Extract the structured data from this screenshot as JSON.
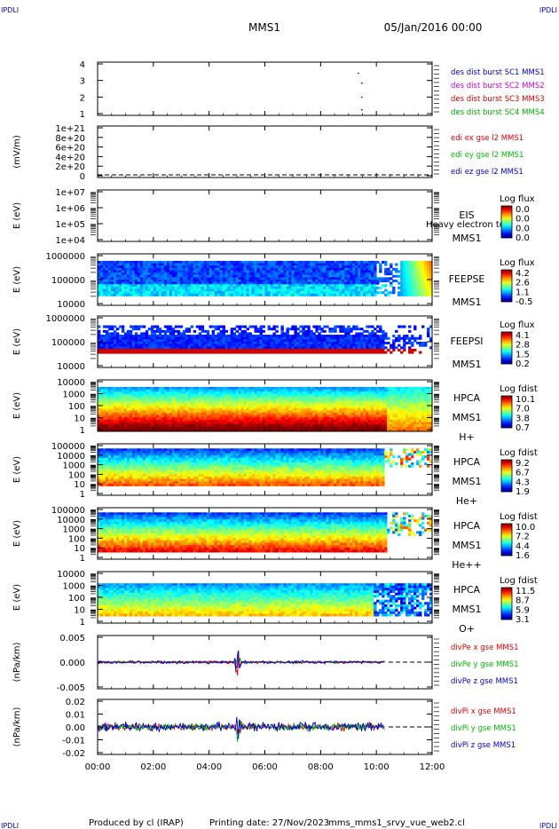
{
  "header": {
    "corner_left": "IPDLI",
    "corner_right": "IPDLI",
    "mission": "MMS1",
    "date_time": "05/Jan/2016 00:00"
  },
  "footer": {
    "produced_by": "Produced by cl (IRAP)",
    "printing_date": "Printing date: 27/Nov/2023",
    "script_name": "mms_mms1_srvy_vue_web2.cl",
    "corner_left": "IPDLI",
    "corner_right": "IPDLI"
  },
  "colors": {
    "mms1": "#0000cc",
    "mms2": "#cc00cc",
    "mms3": "#cc0000",
    "mms4": "#00aa00",
    "x": "#dd0000",
    "y": "#00bb00",
    "z": "#0000cc"
  },
  "chart_data": [
    {
      "type": "line",
      "id": "panel1",
      "ylabel": "",
      "yticks": [
        "1",
        "2",
        "3",
        "4"
      ],
      "ylim": [
        0.6,
        4.4
      ],
      "legend": [
        {
          "label": "des dist burst SC1 MMS1",
          "color": "#0000cc"
        },
        {
          "label": "des dist burst SC2 MMS2",
          "color": "#cc00cc"
        },
        {
          "label": "des dist burst SC3 MMS3",
          "color": "#cc0000"
        },
        {
          "label": "des dist burst SC4 MMS4",
          "color": "#00aa00"
        }
      ]
    },
    {
      "type": "line",
      "id": "panel2",
      "ylabel": "(mV/m)",
      "yticks": [
        "0",
        "2e+20",
        "4e+20",
        "6e+20",
        "8e+20",
        "1e+21"
      ],
      "ylim": [
        0,
        1e+21
      ],
      "legend": [
        {
          "label": "edi ex gse l2 MMS1",
          "color": "#dd0000"
        },
        {
          "label": "edi ey gse l2 MMS1",
          "color": "#00bb00"
        },
        {
          "label": "edi ez gse l2 MMS1",
          "color": "#0000cc"
        }
      ]
    },
    {
      "type": "heatmap",
      "id": "panel3",
      "ylabel": "E (eV)",
      "yticks": [
        "1e+04",
        "1e+05",
        "1e+06",
        "1e+07"
      ],
      "label_lines": [
        "EIS",
        "MMS1"
      ],
      "overlay_text": "Heavy electron to",
      "colorbar": {
        "title": "Log flux",
        "values": [
          "0.0",
          "0.0",
          "0.0",
          "0.0"
        ]
      }
    },
    {
      "type": "heatmap",
      "id": "panel4",
      "ylabel": "E (eV)",
      "yticks": [
        "10000",
        "100000",
        "1000000"
      ],
      "label_lines": [
        "FEEPSE",
        "MMS1"
      ],
      "colorbar": {
        "title": "Log flux",
        "values": [
          "4.2",
          "2.6",
          "1.1",
          "-0.5"
        ]
      }
    },
    {
      "type": "heatmap",
      "id": "panel5",
      "ylabel": "E (eV)",
      "yticks": [
        "10000",
        "100000",
        "1000000"
      ],
      "label_lines": [
        "FEEPSI",
        "MMS1"
      ],
      "colorbar": {
        "title": "Log flux",
        "values": [
          "4.1",
          "2.8",
          "1.5",
          "0.2"
        ]
      }
    },
    {
      "type": "heatmap",
      "id": "panel6",
      "ylabel": "E (eV)",
      "yticks": [
        "1",
        "10",
        "100",
        "1000",
        "10000"
      ],
      "label_lines": [
        "HPCA",
        "MMS1",
        "H+"
      ],
      "colorbar": {
        "title": "Log fdist",
        "values": [
          "10.1",
          "7.0",
          "3.8",
          "0.7"
        ]
      }
    },
    {
      "type": "heatmap",
      "id": "panel7",
      "ylabel": "E (eV)",
      "yticks": [
        "1",
        "10",
        "100",
        "1000",
        "10000",
        "100000"
      ],
      "label_lines": [
        "HPCA",
        "MMS1",
        "He+"
      ],
      "colorbar": {
        "title": "Log fdist",
        "values": [
          "9.2",
          "6.7",
          "4.3",
          "1.9"
        ]
      }
    },
    {
      "type": "heatmap",
      "id": "panel8",
      "ylabel": "E (eV)",
      "yticks": [
        "1",
        "10",
        "100",
        "1000",
        "10000",
        "100000"
      ],
      "label_lines": [
        "HPCA",
        "MMS1",
        "He++"
      ],
      "colorbar": {
        "title": "Log fdist",
        "values": [
          "10.0",
          "7.2",
          "4.4",
          "1.6"
        ]
      }
    },
    {
      "type": "heatmap",
      "id": "panel9",
      "ylabel": "E (eV)",
      "yticks": [
        "1",
        "10",
        "100",
        "1000",
        "10000"
      ],
      "label_lines": [
        "HPCA",
        "MMS1",
        "O+"
      ],
      "colorbar": {
        "title": "Log fdist",
        "values": [
          "11.5",
          "8.7",
          "5.9",
          "3.1"
        ]
      }
    },
    {
      "type": "line",
      "id": "panel10",
      "ylabel": "(nPa/km)",
      "yticks": [
        "-0.005",
        "0.000",
        "0.005"
      ],
      "ylim": [
        -0.0075,
        0.0065
      ],
      "legend": [
        {
          "label": "divPe x gse MMS1",
          "color": "#dd0000"
        },
        {
          "label": "divPe y gse MMS1",
          "color": "#00bb00"
        },
        {
          "label": "divPe z gse MMS1",
          "color": "#0000cc"
        }
      ]
    },
    {
      "type": "line",
      "id": "panel11",
      "ylabel": "(nPa/km)",
      "yticks": [
        "-0.02",
        "-0.01",
        "0.00",
        "0.01",
        "0.02"
      ],
      "ylim": [
        -0.025,
        0.025
      ],
      "legend": [
        {
          "label": "divPi x gse MMS1",
          "color": "#dd0000"
        },
        {
          "label": "divPi y gse MMS1",
          "color": "#00bb00"
        },
        {
          "label": "divPi z gse MMS1",
          "color": "#0000cc"
        }
      ]
    }
  ],
  "xaxis": {
    "ticks": [
      "00:00",
      "02:00",
      "04:00",
      "06:00",
      "08:00",
      "10:00",
      "12:00"
    ]
  }
}
